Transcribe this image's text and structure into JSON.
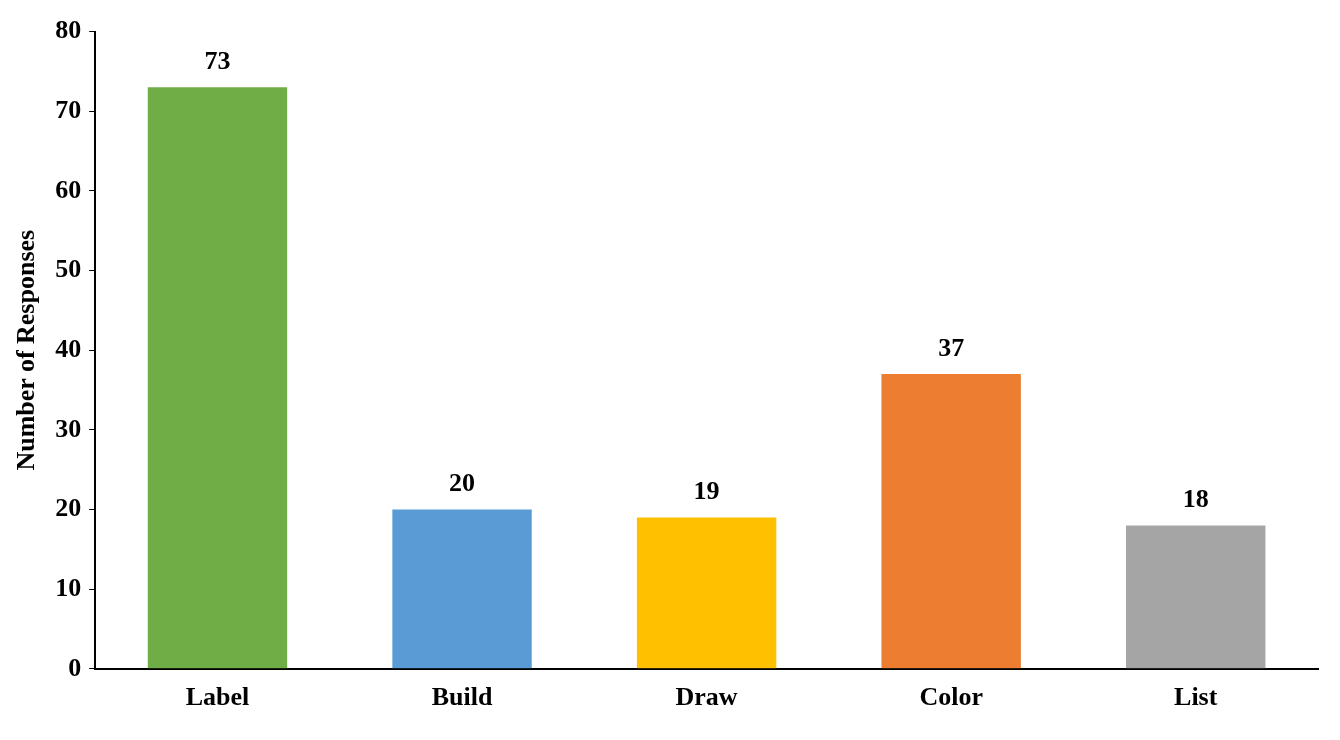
{
  "chart_data": {
    "type": "bar",
    "ylabel": "Number of Responses",
    "categories": [
      "Label",
      "Build",
      "Draw",
      "Color",
      "List"
    ],
    "values": [
      73,
      20,
      19,
      37,
      18
    ],
    "colors": [
      "#70ad47",
      "#5b9bd5",
      "#ffc000",
      "#ed7d31",
      "#a5a5a5"
    ],
    "ylim": [
      0,
      80
    ],
    "yticks": [
      0,
      10,
      20,
      30,
      40,
      50,
      60,
      70,
      80
    ],
    "grid": false,
    "legend": false,
    "data_labels": true
  }
}
